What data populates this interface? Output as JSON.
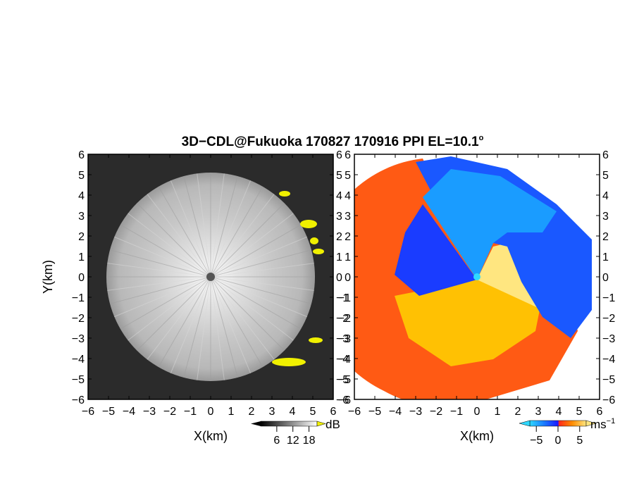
{
  "title": "3D−CDL@Fukuoka 170827 170916 PPI EL=10.1",
  "title_degree": "o",
  "chart_data": [
    {
      "type": "heatmap",
      "product": "reflectivity",
      "xlabel": "X(km)",
      "ylabel": "Y(km)",
      "xlim": [
        -6,
        6
      ],
      "ylim": [
        -6,
        6
      ],
      "xticks": [
        -6,
        -5,
        -4,
        -3,
        -2,
        -1,
        0,
        1,
        2,
        3,
        4,
        5,
        6
      ],
      "yticks": [
        -6,
        -5,
        -4,
        -3,
        -2,
        -1,
        0,
        1,
        2,
        3,
        4,
        5,
        6
      ],
      "xticklabels": [
        "−6",
        "−5",
        "−4",
        "−3",
        "−2",
        "−1",
        "0",
        "1",
        "2",
        "3",
        "4",
        "5",
        "6"
      ],
      "yticklabels": [
        "−6",
        "−5",
        "−4",
        "−3",
        "−2",
        "−1",
        "0",
        "1",
        "2",
        "3",
        "4",
        "5",
        "6"
      ],
      "range_km": 5.1,
      "colormap": "grayscale",
      "saturation_color": "#f0f000",
      "colorbar": {
        "ticks": [
          6,
          12,
          18
        ],
        "ticklabels": [
          "6",
          "12",
          "18"
        ],
        "units": "dB"
      }
    },
    {
      "type": "heatmap",
      "product": "doppler_velocity",
      "xlabel": "X(km)",
      "xlim": [
        -6,
        6
      ],
      "ylim": [
        -6,
        6
      ],
      "xticks": [
        -6,
        -5,
        -4,
        -3,
        -2,
        -1,
        0,
        1,
        2,
        3,
        4,
        5,
        6
      ],
      "yticks": [
        -6,
        -5,
        -4,
        -3,
        -2,
        -1,
        0,
        1,
        2,
        3,
        4,
        5,
        6
      ],
      "xticklabels": [
        "−6",
        "−5",
        "−4",
        "−3",
        "−2",
        "−1",
        "0",
        "1",
        "2",
        "3",
        "4",
        "5",
        "6"
      ],
      "yticklabels": [
        "−6",
        "−5",
        "−4",
        "−3",
        "−2",
        "−1",
        "0",
        "1",
        "2",
        "3",
        "4",
        "5",
        "6"
      ],
      "range_km": 5.8,
      "colormap": "blue-red",
      "colorbar": {
        "ticks": [
          -5,
          0,
          5
        ],
        "ticklabels": [
          "−5",
          "0",
          "5"
        ],
        "units": "ms",
        "units_exp": "−1"
      }
    }
  ]
}
